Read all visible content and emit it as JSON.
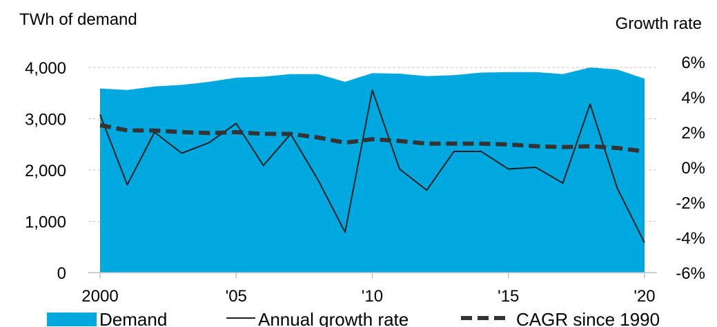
{
  "chart_data": {
    "type": "area",
    "left_axis_title": "TWh of demand",
    "right_axis_title": "Growth rate",
    "x": [
      2000,
      2001,
      2002,
      2003,
      2004,
      2005,
      2006,
      2007,
      2008,
      2009,
      2010,
      2011,
      2012,
      2013,
      2014,
      2015,
      2016,
      2017,
      2018,
      2019,
      2020
    ],
    "x_tick_labels": [
      {
        "x": 2000,
        "label": "2000"
      },
      {
        "x": 2005,
        "label": "'05"
      },
      {
        "x": 2010,
        "label": "'10"
      },
      {
        "x": 2015,
        "label": "'15"
      },
      {
        "x": 2020,
        "label": "'20"
      }
    ],
    "y_left": {
      "ylim": [
        0,
        4000
      ],
      "ticks": [
        0,
        1000,
        2000,
        3000,
        4000
      ],
      "tick_labels": [
        "0",
        "1,000",
        "2,000",
        "3,000",
        "4,000"
      ]
    },
    "y_right": {
      "ylim": [
        -6,
        6
      ],
      "ticks": [
        -6,
        -4,
        -2,
        0,
        2,
        4,
        6
      ],
      "tick_labels": [
        "-6%",
        "-4%",
        "-2%",
        "0%",
        "2%",
        "4%",
        "6%"
      ]
    },
    "grid": "horizontal dashed",
    "legend_position": "bottom",
    "series": [
      {
        "name": "Demand",
        "kind": "area",
        "axis": "left",
        "color": "#00A8E0",
        "values": [
          3590,
          3560,
          3630,
          3660,
          3720,
          3800,
          3820,
          3870,
          3870,
          3720,
          3890,
          3880,
          3830,
          3850,
          3900,
          3910,
          3910,
          3870,
          4000,
          3960,
          3780
        ]
      },
      {
        "name": "Annual growth rate",
        "kind": "line",
        "axis": "right",
        "color": "#1f1f1f",
        "values": [
          3.0,
          -1.0,
          2.0,
          0.8,
          1.4,
          2.5,
          0.1,
          1.9,
          -0.7,
          -3.7,
          4.4,
          -0.1,
          -1.3,
          0.9,
          0.9,
          -0.1,
          0.0,
          -0.9,
          3.6,
          -1.2,
          -4.3
        ]
      },
      {
        "name": "CAGR since 1990",
        "kind": "dashed-line",
        "axis": "right",
        "color": "#333333",
        "values": [
          2.4,
          2.1,
          2.1,
          2.0,
          1.95,
          2.0,
          1.9,
          1.9,
          1.7,
          1.4,
          1.6,
          1.5,
          1.35,
          1.35,
          1.35,
          1.3,
          1.2,
          1.15,
          1.2,
          1.1,
          0.9
        ]
      }
    ]
  }
}
